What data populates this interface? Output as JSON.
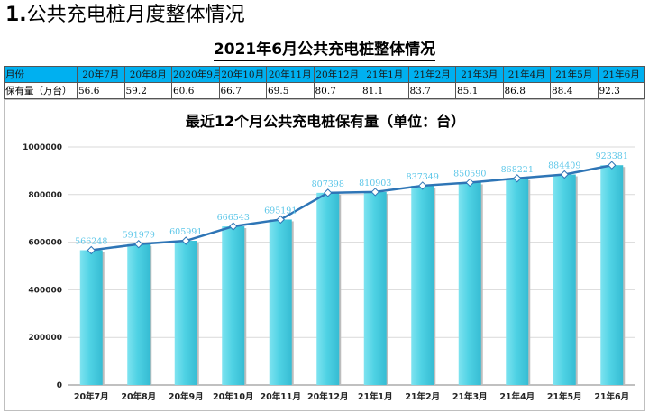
{
  "header": {
    "section_number": "1.",
    "section_title": "公共充电桩月度整体情况",
    "subtitle": "2021年6月公共充电桩整体情况"
  },
  "table": {
    "header_label": "月份",
    "row_label": "保有量（万台）",
    "months": [
      "20年7月",
      "20年8月",
      "2020年9月",
      "20年10月",
      "20年11月",
      "20年12月",
      "21年1月",
      "21年2月",
      "21年3月",
      "21年4月",
      "21年5月",
      "21年6月"
    ],
    "values": [
      "56.6",
      "59.2",
      "60.6",
      "66.7",
      "69.5",
      "80.7",
      "81.1",
      "83.7",
      "85.1",
      "86.8",
      "88.4",
      "92.3"
    ]
  },
  "chart_data": {
    "type": "bar",
    "title": "最近12个月公共充电桩保有量（单位：台）",
    "categories": [
      "20年7月",
      "20年8月",
      "20年9月",
      "20年10月",
      "20年11月",
      "20年12月",
      "21年1月",
      "21年2月",
      "21年3月",
      "21年4月",
      "21年5月",
      "21年6月"
    ],
    "values": [
      566248,
      591979,
      605991,
      666543,
      695191,
      807398,
      810903,
      837349,
      850590,
      868221,
      884409,
      923381
    ],
    "overlay": "line-with-markers",
    "ylim": [
      0,
      1000000
    ],
    "yticks": [
      "0",
      "200000",
      "400000",
      "600000",
      "800000",
      "1000000"
    ],
    "xlabel": "",
    "ylabel": "",
    "grid": true,
    "legend": "none",
    "colors": {
      "bar": "#4fd2e4",
      "line": "#2e75b6",
      "label": "#5bc6e8"
    }
  }
}
